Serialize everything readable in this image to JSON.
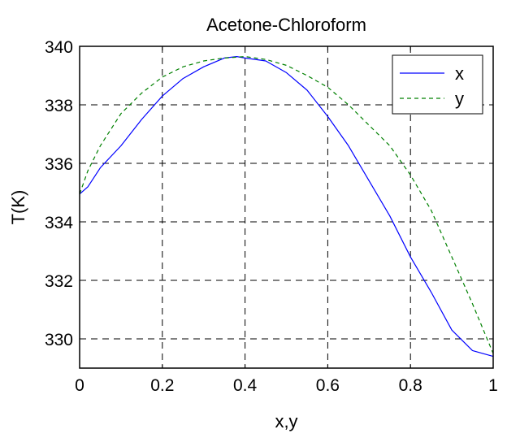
{
  "chart_data": {
    "type": "line",
    "title": "Acetone-Chloroform",
    "xlabel": "x,y",
    "ylabel": "T(K)",
    "xlim": [
      0,
      1
    ],
    "ylim": [
      329,
      340
    ],
    "xticks": [
      0,
      0.2,
      0.4,
      0.6,
      0.8,
      1
    ],
    "xtick_labels": [
      "0",
      "0.2",
      "0.4",
      "0.6",
      "0.8",
      "1"
    ],
    "yticks": [
      330,
      332,
      334,
      336,
      338,
      340
    ],
    "ytick_labels": [
      "330",
      "332",
      "334",
      "336",
      "338",
      "340"
    ],
    "grid": true,
    "legend_position": "top-right",
    "series": [
      {
        "name": "x",
        "color": "#0000ff",
        "style": "solid",
        "x": [
          0,
          0.02,
          0.05,
          0.1,
          0.15,
          0.2,
          0.25,
          0.3,
          0.35,
          0.38,
          0.4,
          0.45,
          0.5,
          0.55,
          0.6,
          0.65,
          0.7,
          0.75,
          0.8,
          0.85,
          0.9,
          0.95,
          1
        ],
        "y": [
          334.95,
          335.2,
          335.85,
          336.6,
          337.5,
          338.3,
          338.9,
          339.3,
          339.6,
          339.65,
          339.6,
          339.5,
          339.1,
          338.5,
          337.6,
          336.6,
          335.4,
          334.2,
          332.8,
          331.6,
          330.3,
          329.6,
          329.4
        ]
      },
      {
        "name": "y",
        "color": "#008000",
        "style": "dashed",
        "x": [
          0,
          0.02,
          0.05,
          0.1,
          0.15,
          0.2,
          0.25,
          0.3,
          0.35,
          0.4,
          0.45,
          0.5,
          0.55,
          0.6,
          0.65,
          0.7,
          0.75,
          0.8,
          0.85,
          0.9,
          0.95,
          1
        ],
        "y": [
          334.95,
          335.75,
          336.6,
          337.7,
          338.4,
          338.95,
          339.3,
          339.5,
          339.6,
          339.65,
          339.55,
          339.35,
          339.0,
          338.6,
          338.0,
          337.3,
          336.6,
          335.6,
          334.4,
          332.8,
          331.2,
          329.5
        ]
      }
    ]
  }
}
